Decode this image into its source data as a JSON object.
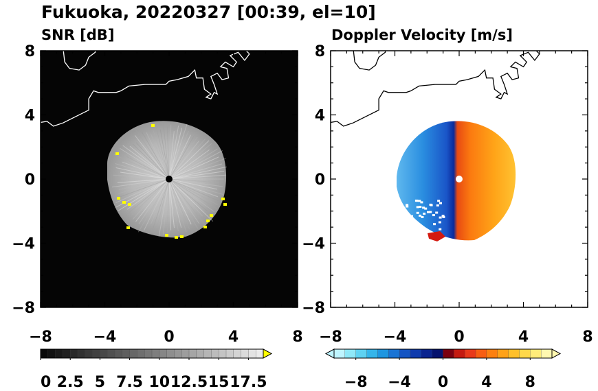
{
  "figure": {
    "title": "Fukuoka, 20220327 [00:39, el=10]"
  },
  "chart_data": [
    {
      "type": "heatmap",
      "title": "SNR [dB]",
      "xlim": [
        -8,
        8
      ],
      "ylim": [
        -8,
        8
      ],
      "xticks": [
        "−8",
        "−4",
        "0",
        "4",
        "8"
      ],
      "yticks": [
        "8",
        "4",
        "0",
        "−4",
        "−8"
      ],
      "background": "#050505",
      "echo_radius": 4.0,
      "value_range": [
        0,
        18.75
      ],
      "colorbar": {
        "labels": [
          "0",
          "2.5",
          "5",
          "7.5",
          "10",
          "12.5",
          "15",
          "17.5"
        ],
        "ticks": [
          0,
          2.5,
          5,
          7.5,
          10,
          12.5,
          15,
          17.5
        ],
        "step": 0.625,
        "overflow_color": "#ffff00"
      },
      "coastline": true
    },
    {
      "type": "heatmap",
      "title": "Doppler Velocity [m/s]",
      "xlim": [
        -8,
        8
      ],
      "ylim": [
        -8,
        8
      ],
      "xticks": [
        "−8",
        "−4",
        "0",
        "4",
        "8"
      ],
      "yticks": [
        "8",
        "4",
        "0",
        "−4",
        "−8"
      ],
      "background": "#ffffff",
      "echo_radius": 4.0,
      "value_range": [
        -10,
        10
      ],
      "colorbar": {
        "labels": [
          "−8",
          "−4",
          "0",
          "4",
          "8"
        ],
        "ticks": [
          -8,
          -4,
          0,
          4,
          8
        ],
        "colors": [
          "#bff5ff",
          "#8fe8f8",
          "#5fd2f2",
          "#35b5ea",
          "#1f96e0",
          "#1a74d4",
          "#1555c3",
          "#0f3bad",
          "#0a248f",
          "#05126e",
          "#7a0010",
          "#c41a10",
          "#e8391a",
          "#f75e12",
          "#fc8010",
          "#ffa218",
          "#ffc02a",
          "#ffd84a",
          "#ffec7a",
          "#fff8b0"
        ],
        "extend": "both"
      },
      "coastline": true
    }
  ]
}
